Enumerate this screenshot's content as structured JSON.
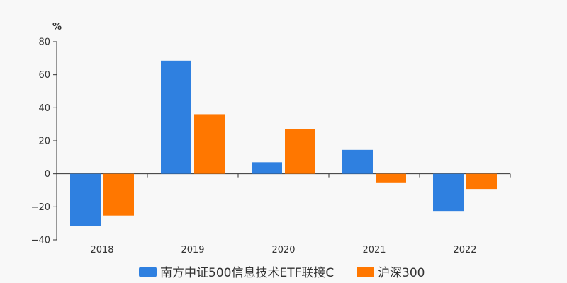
{
  "chart_data": {
    "type": "bar",
    "ylabel": "%",
    "categories": [
      "2018",
      "2019",
      "2020",
      "2021",
      "2022"
    ],
    "series": [
      {
        "name": "南方中证500信息技术ETF联接C",
        "color": "#2f80e0",
        "values": [
          -31.5,
          68.5,
          7.0,
          14.5,
          -22.5
        ]
      },
      {
        "name": "沪深300",
        "color": "#ff7700",
        "values": [
          -25.3,
          36.1,
          27.2,
          -5.2,
          -9.2
        ]
      }
    ],
    "ylim": [
      -40,
      80
    ],
    "yticks": [
      80,
      60,
      40,
      20,
      0,
      -20,
      -40
    ],
    "grid": false,
    "legend_position": "bottom"
  }
}
